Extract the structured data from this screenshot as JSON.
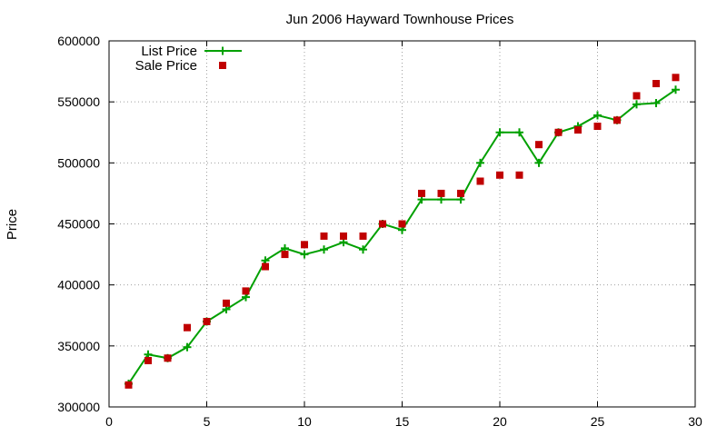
{
  "chart_data": {
    "type": "line",
    "title": "Jun 2006 Hayward Townhouse Prices",
    "xlabel": "",
    "ylabel": "Price",
    "xlim": [
      0,
      30
    ],
    "ylim": [
      300000,
      600000
    ],
    "x_ticks": [
      0,
      5,
      10,
      15,
      20,
      25,
      30
    ],
    "y_ticks": [
      300000,
      350000,
      400000,
      450000,
      500000,
      550000,
      600000
    ],
    "grid": true,
    "legend_position": "top-left",
    "series": [
      {
        "name": "List Price",
        "style": "line-with-plus-markers",
        "color": "#00a000",
        "x": [
          1,
          2,
          3,
          4,
          5,
          6,
          7,
          8,
          9,
          10,
          11,
          12,
          13,
          14,
          15,
          16,
          17,
          18,
          19,
          20,
          21,
          22,
          23,
          24,
          25,
          26,
          27,
          28,
          29
        ],
        "values": [
          319000,
          343000,
          340000,
          349000,
          370000,
          380000,
          390000,
          420000,
          430000,
          425000,
          429000,
          435000,
          429000,
          450000,
          445000,
          470000,
          470000,
          470000,
          500000,
          525000,
          525000,
          500000,
          525000,
          530000,
          539000,
          535000,
          548000,
          549000,
          560000
        ]
      },
      {
        "name": "Sale Price",
        "style": "square-markers",
        "color": "#c00000",
        "x": [
          1,
          2,
          3,
          4,
          5,
          6,
          7,
          8,
          9,
          10,
          11,
          12,
          13,
          14,
          15,
          16,
          17,
          18,
          19,
          20,
          21,
          22,
          23,
          24,
          25,
          26,
          27,
          28,
          29
        ],
        "values": [
          318000,
          338000,
          340000,
          365000,
          370000,
          385000,
          395000,
          415000,
          425000,
          433000,
          440000,
          440000,
          440000,
          450000,
          450000,
          475000,
          475000,
          475000,
          485000,
          490000,
          490000,
          515000,
          525000,
          527000,
          530000,
          535000,
          555000,
          565000,
          570000
        ]
      }
    ]
  }
}
